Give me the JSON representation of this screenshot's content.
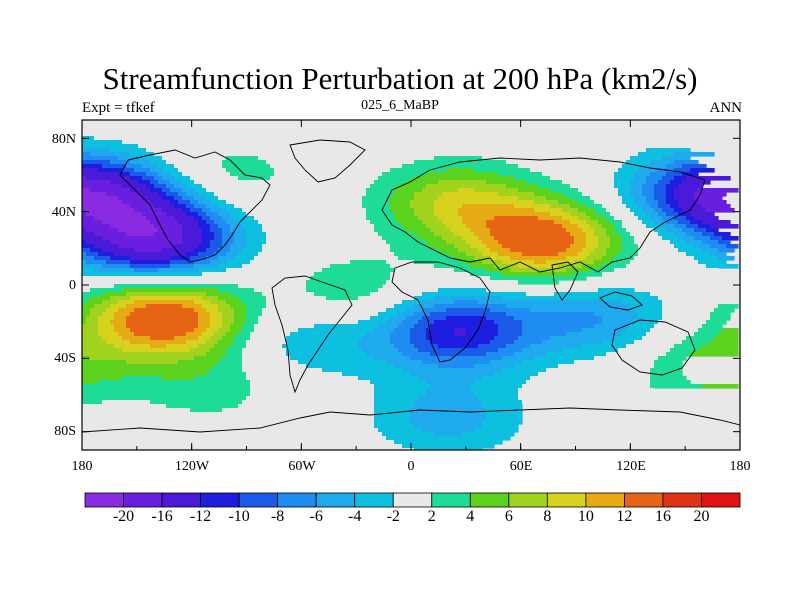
{
  "title": "Streamfunction Perturbation at 200 hPa (km2/s)",
  "left_string": "Expt = tfkef",
  "center_string": "025_6_MaBP",
  "right_string": "ANN",
  "y_ticks": [
    "80N",
    "40N",
    "0",
    "40S",
    "80S"
  ],
  "x_ticks": [
    "180",
    "120W",
    "60W",
    "0",
    "60E",
    "120E",
    "180"
  ],
  "colorbar": {
    "labels": [
      "-20",
      "-16",
      "-12",
      "-10",
      "-8",
      "-6",
      "-4",
      "-2",
      "2",
      "4",
      "6",
      "8",
      "10",
      "12",
      "16",
      "20"
    ],
    "colors": [
      "#8a2be2",
      "#6a1ee0",
      "#4a1ad8",
      "#1e1ee0",
      "#1a5ae6",
      "#1e8cf0",
      "#1eaaec",
      "#0ec0e0",
      "#e8e8e8",
      "#1edc96",
      "#5ad21e",
      "#a0d21e",
      "#d6d21e",
      "#e6aa14",
      "#e66414",
      "#e03214",
      "#e01414"
    ]
  },
  "chart_data": {
    "type": "heatmap",
    "title": "Streamfunction Perturbation at 200 hPa (km2/s)",
    "units": "km2/s",
    "levels": [
      -20,
      -16,
      -12,
      -10,
      -8,
      -6,
      -4,
      -2,
      2,
      4,
      6,
      8,
      10,
      12,
      16,
      20
    ],
    "lon_range": [
      -180,
      180
    ],
    "lat_range": [
      -90,
      90
    ],
    "features": [
      {
        "lon": -140,
        "lat": 25,
        "value": -17
      },
      {
        "lon": -168,
        "lat": 48,
        "value": -12
      },
      {
        "lon": -135,
        "lat": -18,
        "value": 15
      },
      {
        "lon": 72,
        "lat": 24,
        "value": 14
      },
      {
        "lon": 25,
        "lat": 45,
        "value": 8
      },
      {
        "lon": 25,
        "lat": -25,
        "value": -12
      },
      {
        "lon": 100,
        "lat": -18,
        "value": -6
      },
      {
        "lon": 160,
        "lat": 50,
        "value": -10
      },
      {
        "lon": 165,
        "lat": -45,
        "value": 5
      },
      {
        "lon": -110,
        "lat": -55,
        "value": 3
      },
      {
        "lon": 20,
        "lat": -72,
        "value": -5
      },
      {
        "lon": -30,
        "lat": -5,
        "value": 4
      },
      {
        "lon": -55,
        "lat": -30,
        "value": -4
      },
      {
        "lon": -100,
        "lat": 60,
        "value": 3
      }
    ]
  }
}
